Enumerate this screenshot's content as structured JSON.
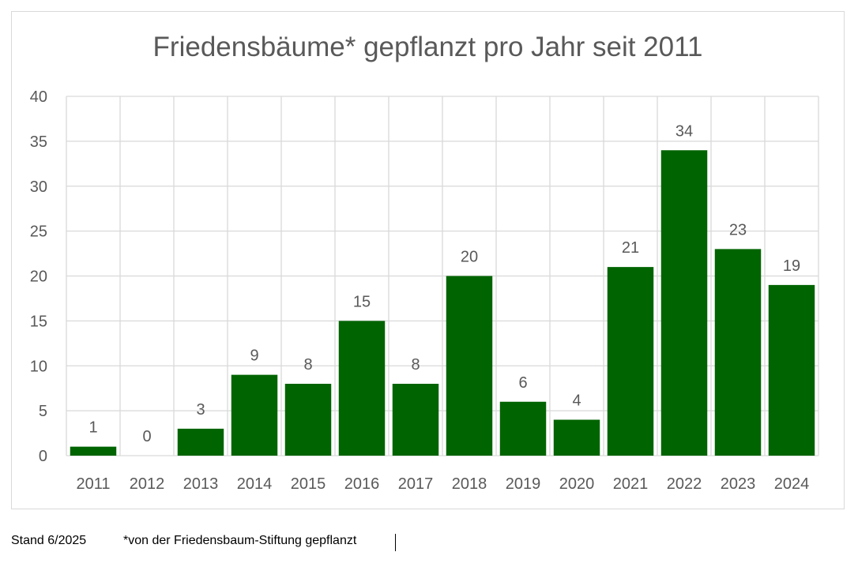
{
  "footer": {
    "stand": "Stand 6/2025",
    "note": "*von der Friedensbaum-Stiftung gepflanzt"
  },
  "colors": {
    "bar": "#006400",
    "grid": "#d9d9d9",
    "text": "#595959"
  },
  "chart_data": {
    "type": "bar",
    "title": "Friedensbäume* gepflanzt pro Jahr seit 2011",
    "xlabel": "",
    "ylabel": "",
    "categories": [
      "2011",
      "2012",
      "2013",
      "2014",
      "2015",
      "2016",
      "2017",
      "2018",
      "2019",
      "2020",
      "2021",
      "2022",
      "2023",
      "2024"
    ],
    "values": [
      1,
      0,
      3,
      9,
      8,
      15,
      8,
      20,
      6,
      4,
      21,
      34,
      23,
      19
    ],
    "ylim": [
      0,
      40
    ],
    "yticks": [
      0,
      5,
      10,
      15,
      20,
      25,
      30,
      35,
      40
    ],
    "grid": "both",
    "data_labels": true,
    "legend": "none"
  }
}
